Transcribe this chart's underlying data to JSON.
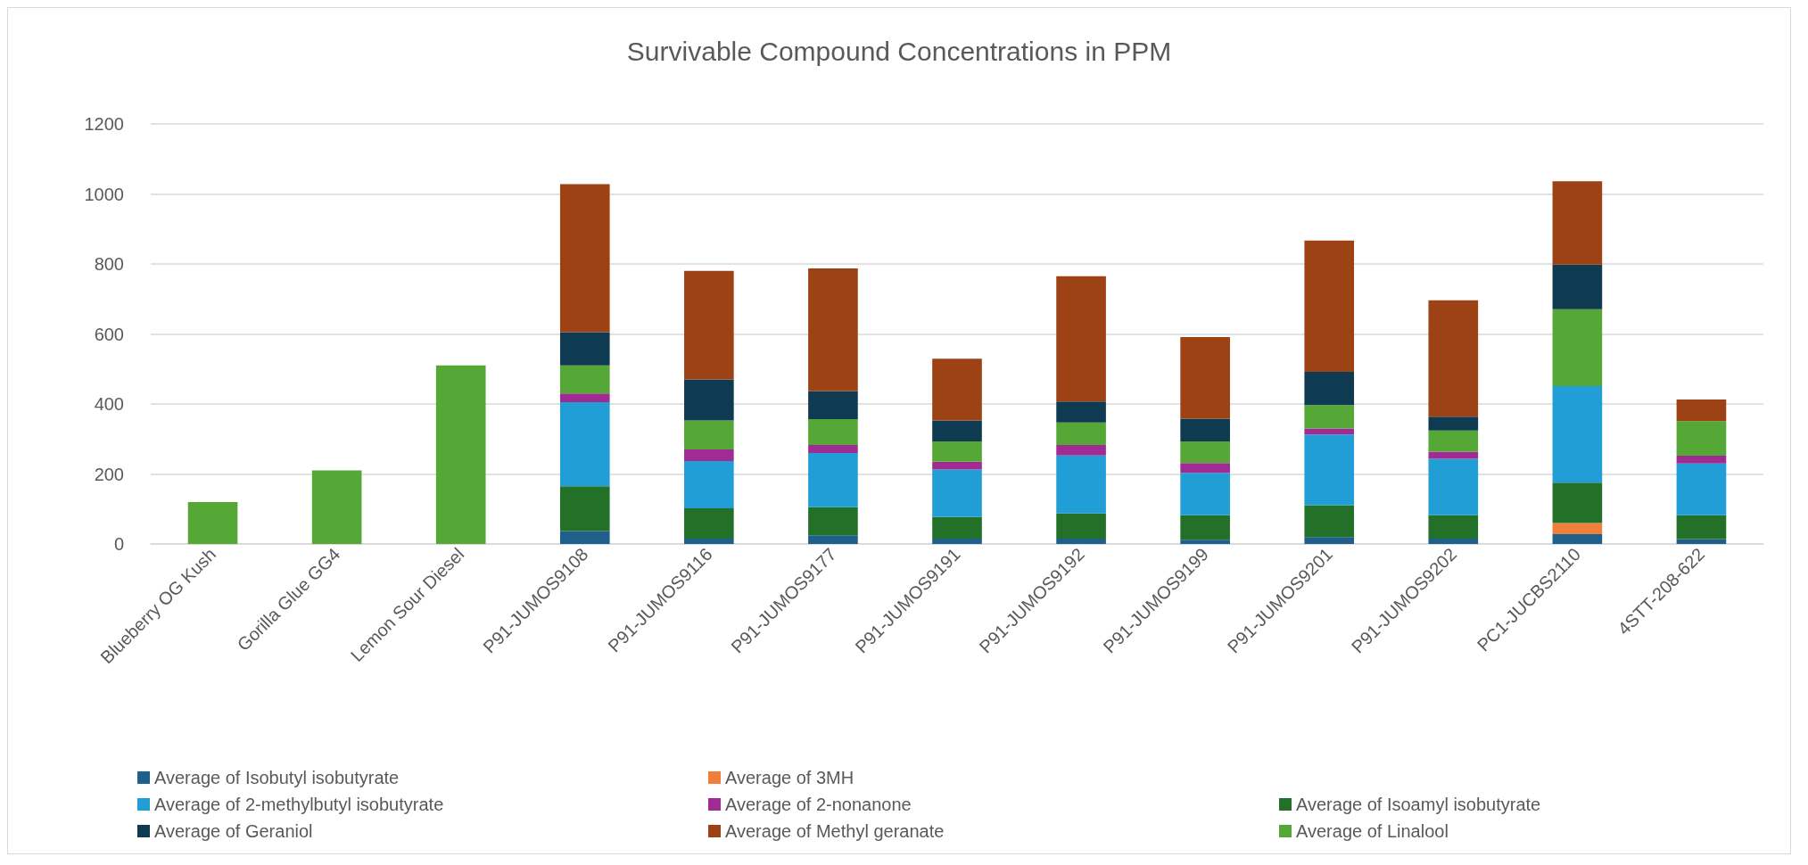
{
  "chart_data": {
    "type": "bar",
    "stacked": true,
    "title": "Survivable Compound Concentrations in PPM",
    "categories": [
      "Blueberry OG Kush",
      "Gorilla Glue GG4",
      "Lemon Sour Diesel",
      "P91-JUMOS9108",
      "P91-JUMOS9116",
      "P91-JUMOS9177",
      "P91-JUMOS9191",
      "P91-JUMOS9192",
      "P91-JUMOS9199",
      "P91-JUMOS9201",
      "P91-JUMOS9202",
      "PC1-JUCBS2110",
      "4STT-208-622"
    ],
    "series": [
      {
        "name": "Average of Isobutyl isobutyrate",
        "color": "#1f5f8b",
        "values": [
          null,
          null,
          null,
          37,
          15,
          25,
          15,
          15,
          12,
          20,
          15,
          28,
          14
        ]
      },
      {
        "name": "Average of 3MH",
        "color": "#f07f3c",
        "values": [
          null,
          null,
          null,
          null,
          null,
          null,
          null,
          null,
          null,
          null,
          null,
          32,
          null
        ]
      },
      {
        "name": "Average of Isoamyl isobutyrate",
        "color": "#237028",
        "values": [
          null,
          null,
          null,
          128,
          87,
          80,
          62,
          72,
          70,
          91,
          67,
          115,
          68
        ]
      },
      {
        "name": "Average of 2-methylbutyl isobutyrate",
        "color": "#219ed6",
        "values": [
          null,
          null,
          null,
          240,
          135,
          155,
          136,
          166,
          121,
          202,
          161,
          276,
          148
        ]
      },
      {
        "name": "Average of 2-nonanone",
        "color": "#a02b93",
        "values": [
          null,
          null,
          null,
          25,
          33,
          23,
          22,
          30,
          28,
          17,
          21,
          null,
          22
        ]
      },
      {
        "name": "Average of Linalool",
        "color": "#55a835",
        "values": [
          120,
          210,
          510,
          80,
          83,
          74,
          58,
          64,
          62,
          67,
          60,
          220,
          99
        ]
      },
      {
        "name": "Average of Geraniol",
        "color": "#0e3a52",
        "values": [
          null,
          null,
          null,
          95,
          117,
          80,
          60,
          60,
          65,
          95,
          40,
          127,
          null
        ]
      },
      {
        "name": "Average of Methyl geranate",
        "color": "#9c4215",
        "values": [
          null,
          null,
          null,
          423,
          310,
          350,
          176,
          358,
          233,
          375,
          332,
          238,
          62
        ]
      }
    ],
    "ylim": [
      0,
      1200
    ],
    "yticks": [
      0,
      200,
      400,
      600,
      800,
      1000,
      1200
    ],
    "grid": "y",
    "legend": "bottom"
  }
}
